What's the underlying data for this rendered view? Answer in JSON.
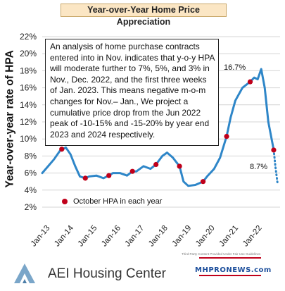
{
  "title": "Year-over-Year Home Price Appreciation",
  "chart_data": {
    "type": "line",
    "ylabel": "Year-over-year rate of HPA",
    "ylim": [
      2,
      22
    ],
    "y_ticks": [
      "2%",
      "4%",
      "6%",
      "8%",
      "10%",
      "12%",
      "14%",
      "16%",
      "18%",
      "20%",
      "22%"
    ],
    "x_ticks": [
      "Jan-13",
      "Jan-14",
      "Jan-15",
      "Jan-16",
      "Jan-17",
      "Jan-18",
      "Jan-19",
      "Jan-20",
      "Jan-21",
      "Jan-22"
    ],
    "grid": "horizontal",
    "series": [
      {
        "color": "#2e86c8",
        "x": [
          2013.0,
          2013.25,
          2013.5,
          2013.75,
          2014.0,
          2014.2,
          2014.4,
          2014.6,
          2014.83,
          2015.0,
          2015.3,
          2015.6,
          2015.83,
          2016.0,
          2016.3,
          2016.6,
          2016.83,
          2017.0,
          2017.3,
          2017.6,
          2017.83,
          2018.1,
          2018.3,
          2018.55,
          2018.83,
          2019.0,
          2019.2,
          2019.5,
          2019.83,
          2020.0,
          2020.3,
          2020.55,
          2020.83,
          2021.0,
          2021.2,
          2021.5,
          2021.83,
          2022.0,
          2022.15,
          2022.3,
          2022.45,
          2022.6,
          2022.83
        ],
        "y": [
          6.0,
          6.8,
          7.6,
          8.6,
          9.0,
          8.2,
          6.8,
          5.6,
          5.4,
          5.6,
          5.7,
          5.4,
          5.7,
          6.0,
          6.0,
          5.7,
          6.2,
          6.2,
          6.8,
          6.5,
          7.0,
          8.0,
          8.4,
          7.8,
          6.8,
          5.0,
          4.5,
          4.6,
          5.0,
          5.6,
          6.5,
          7.8,
          10.3,
          12.5,
          14.5,
          16.0,
          16.7,
          17.2,
          17.0,
          18.2,
          16.0,
          12.0,
          8.7
        ]
      },
      {
        "style": "dotted",
        "color": "#2e86c8",
        "x": [
          2022.83,
          2022.9,
          2023.0
        ],
        "y": [
          8.7,
          6.8,
          4.6
        ]
      }
    ],
    "october_points": {
      "label": "October HPA in each year",
      "color": "#c0001a",
      "x": [
        2013.83,
        2014.83,
        2015.83,
        2016.83,
        2017.83,
        2018.83,
        2019.83,
        2020.83,
        2021.83,
        2022.83
      ],
      "y": [
        8.8,
        5.4,
        5.7,
        6.2,
        7.0,
        6.8,
        5.0,
        10.3,
        16.7,
        8.7
      ]
    },
    "annotations": [
      "16.7%",
      "8.7%"
    ]
  },
  "annotation_text": "An analysis of home purchase contracts entered into in Nov. indicates that y-o-y HPA will moderate further to 7%, 5%, and 3% in Nov., Dec. 2022, and the first three weeks of Jan. 2023. This means negative m-o-m changes for Nov.– Jan., We project a cumulative price drop from the Jun 2022 peak of -10-15% and -15-20% by year end 2023 and 2024 respectively.",
  "footer": {
    "org": "AEI Housing Center",
    "credit": "Third Party Content Provided Under Fair Use Guidelines",
    "badge": "MHPRONEWS.com"
  }
}
